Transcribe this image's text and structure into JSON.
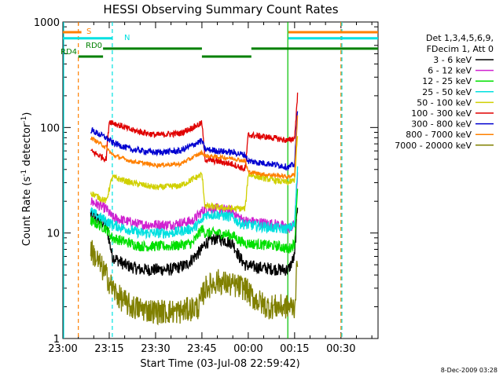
{
  "chart_data": {
    "type": "line",
    "title": "HESSI Observing Summary Count Rates",
    "xlabel": "Start Time (03-Jul-08 22:59:42)",
    "ylabel": "Count Rate (s",
    "ylabel_sup": "-1",
    "ylabel_mid": " detector",
    "ylabel_end": ")",
    "ylim": [
      1,
      1000
    ],
    "yscale": "log",
    "xlim_min": [
      0,
      102
    ],
    "x_ticks": [
      {
        "min": 0,
        "label": "23:00"
      },
      {
        "min": 15,
        "label": "23:15"
      },
      {
        "min": 30,
        "label": "23:30"
      },
      {
        "min": 45,
        "label": "23:45"
      },
      {
        "min": 60,
        "label": "00:00"
      },
      {
        "min": 75,
        "label": "00:15"
      },
      {
        "min": 90,
        "label": "00:30"
      }
    ],
    "y_ticks": [
      {
        "value": 1,
        "label": "1"
      },
      {
        "value": 10,
        "label": "10"
      },
      {
        "value": 100,
        "label": "100"
      },
      {
        "value": 1000,
        "label": "1000"
      }
    ],
    "legend_position": "right",
    "legend_header": [
      "Det 1,3,4,5,6,9,",
      "FDecim 1, Att 0"
    ],
    "series": [
      {
        "name": "3 - 6 keV",
        "color": "#000000",
        "noise": 0.06,
        "points": [
          [
            9,
            15
          ],
          [
            14,
            12
          ],
          [
            16,
            6
          ],
          [
            20,
            5
          ],
          [
            25,
            4.5
          ],
          [
            35,
            4.5
          ],
          [
            40,
            5
          ],
          [
            45,
            7
          ],
          [
            46,
            8
          ],
          [
            50,
            9
          ],
          [
            55,
            8
          ],
          [
            57,
            6
          ],
          [
            59,
            5
          ],
          [
            61,
            4.8
          ],
          [
            70,
            4.5
          ],
          [
            73,
            4.5
          ],
          [
            75,
            6
          ],
          [
            76,
            20
          ]
        ]
      },
      {
        "name": "6 - 12 keV",
        "color": "#d020d0",
        "noise": 0.05,
        "points": [
          [
            9,
            20
          ],
          [
            14,
            17
          ],
          [
            16,
            14
          ],
          [
            25,
            12
          ],
          [
            35,
            12
          ],
          [
            42,
            13
          ],
          [
            45,
            16
          ],
          [
            46,
            17
          ],
          [
            50,
            17
          ],
          [
            55,
            16
          ],
          [
            57,
            14
          ],
          [
            59,
            13
          ],
          [
            70,
            12
          ],
          [
            73,
            11
          ],
          [
            75,
            12
          ],
          [
            76,
            40
          ]
        ]
      },
      {
        "name": "12 - 25 keV",
        "color": "#00e000",
        "noise": 0.05,
        "points": [
          [
            9,
            13
          ],
          [
            14,
            11
          ],
          [
            16,
            9
          ],
          [
            25,
            7.5
          ],
          [
            35,
            7.5
          ],
          [
            42,
            8
          ],
          [
            45,
            11
          ],
          [
            46,
            10
          ],
          [
            50,
            10
          ],
          [
            55,
            9.5
          ],
          [
            57,
            8.5
          ],
          [
            59,
            8
          ],
          [
            70,
            7.5
          ],
          [
            73,
            7
          ],
          [
            75,
            8
          ],
          [
            76,
            30
          ]
        ]
      },
      {
        "name": "25 - 50 keV",
        "color": "#00e0e0",
        "noise": 0.05,
        "points": [
          [
            9,
            16
          ],
          [
            14,
            13
          ],
          [
            16,
            12
          ],
          [
            25,
            10
          ],
          [
            35,
            10
          ],
          [
            42,
            11
          ],
          [
            45,
            13
          ],
          [
            46,
            15
          ],
          [
            50,
            15
          ],
          [
            55,
            14
          ],
          [
            57,
            12.5
          ],
          [
            59,
            12
          ],
          [
            70,
            11
          ],
          [
            73,
            11
          ],
          [
            75,
            12
          ],
          [
            76,
            45
          ]
        ]
      },
      {
        "name": "50 - 100 keV",
        "color": "#d0d000",
        "noise": 0.03,
        "points": [
          [
            9,
            24
          ],
          [
            14,
            20
          ],
          [
            16,
            34
          ],
          [
            22,
            30
          ],
          [
            30,
            27
          ],
          [
            38,
            28
          ],
          [
            45,
            36
          ],
          [
            46,
            18
          ],
          [
            55,
            17
          ],
          [
            59,
            17
          ],
          [
            60,
            36
          ],
          [
            65,
            33
          ],
          [
            70,
            31
          ],
          [
            73,
            30
          ],
          [
            75,
            32
          ],
          [
            76,
            90
          ]
        ]
      },
      {
        "name": "100 - 300 keV",
        "color": "#e00000",
        "noise": 0.03,
        "points": [
          [
            9,
            60
          ],
          [
            14,
            50
          ],
          [
            15,
            115
          ],
          [
            22,
            95
          ],
          [
            30,
            85
          ],
          [
            38,
            88
          ],
          [
            45,
            110
          ],
          [
            46,
            50
          ],
          [
            55,
            45
          ],
          [
            59,
            40
          ],
          [
            60,
            85
          ],
          [
            65,
            82
          ],
          [
            70,
            78
          ],
          [
            73,
            75
          ],
          [
            75,
            80
          ],
          [
            76,
            210
          ]
        ]
      },
      {
        "name": "300 - 800 keV",
        "color": "#0000d0",
        "noise": 0.03,
        "points": [
          [
            9,
            95
          ],
          [
            14,
            80
          ],
          [
            16,
            72
          ],
          [
            22,
            62
          ],
          [
            30,
            58
          ],
          [
            38,
            60
          ],
          [
            45,
            75
          ],
          [
            46,
            62
          ],
          [
            55,
            58
          ],
          [
            59,
            55
          ],
          [
            60,
            48
          ],
          [
            65,
            46
          ],
          [
            70,
            44
          ],
          [
            73,
            42
          ],
          [
            75,
            45
          ],
          [
            76,
            160
          ]
        ]
      },
      {
        "name": "800 - 7000 keV",
        "color": "#ff8000",
        "noise": 0.02,
        "points": [
          [
            9,
            80
          ],
          [
            14,
            65
          ],
          [
            16,
            55
          ],
          [
            22,
            48
          ],
          [
            30,
            44
          ],
          [
            38,
            45
          ],
          [
            45,
            58
          ],
          [
            46,
            54
          ],
          [
            55,
            51
          ],
          [
            59,
            48
          ],
          [
            60,
            38
          ],
          [
            65,
            36
          ],
          [
            70,
            35
          ],
          [
            73,
            34
          ],
          [
            75,
            36
          ],
          [
            76,
            140
          ]
        ]
      },
      {
        "name": "7000 - 20000 keV",
        "color": "#808000",
        "noise": 0.12,
        "points": [
          [
            9,
            7
          ],
          [
            12,
            5
          ],
          [
            14,
            4
          ],
          [
            16,
            3
          ],
          [
            18,
            2.5
          ],
          [
            22,
            2
          ],
          [
            30,
            1.8
          ],
          [
            38,
            1.8
          ],
          [
            44,
            2
          ],
          [
            46,
            3
          ],
          [
            50,
            3.5
          ],
          [
            55,
            3.2
          ],
          [
            59,
            3
          ],
          [
            61,
            2.5
          ],
          [
            66,
            2
          ],
          [
            70,
            2
          ],
          [
            73,
            2
          ],
          [
            75,
            2
          ],
          [
            76,
            6
          ]
        ]
      }
    ],
    "markers": [
      {
        "min": 5,
        "color": "#ff8000",
        "dash": true
      },
      {
        "min": 16,
        "color": "#00e0e0",
        "dash": true
      },
      {
        "min": 72.8,
        "color": "#00c000",
        "dash": false
      },
      {
        "min": 90,
        "color": "#ff8000",
        "dash": true
      },
      {
        "min": 90.3,
        "color": "#00e0e0",
        "dash": true
      }
    ],
    "flag_bars": [
      {
        "label": "S",
        "color": "#ff8000",
        "value": 800,
        "segments": [
          [
            0,
            6
          ],
          [
            73,
            102
          ]
        ]
      },
      {
        "label": "N",
        "color": "#00e0e0",
        "value": 700,
        "segments": [
          [
            0,
            16
          ],
          [
            73,
            102
          ]
        ]
      },
      {
        "label": "RD0",
        "color": "#008000",
        "value": 560,
        "segments": [
          [
            13,
            45
          ],
          [
            61,
            102
          ]
        ]
      },
      {
        "label": "RD4",
        "color": "#008000",
        "value": 470,
        "segments": [
          [
            5,
            13
          ],
          [
            45,
            61
          ]
        ]
      }
    ],
    "grid": false
  },
  "footer_timestamp": "8-Dec-2009 03:28"
}
